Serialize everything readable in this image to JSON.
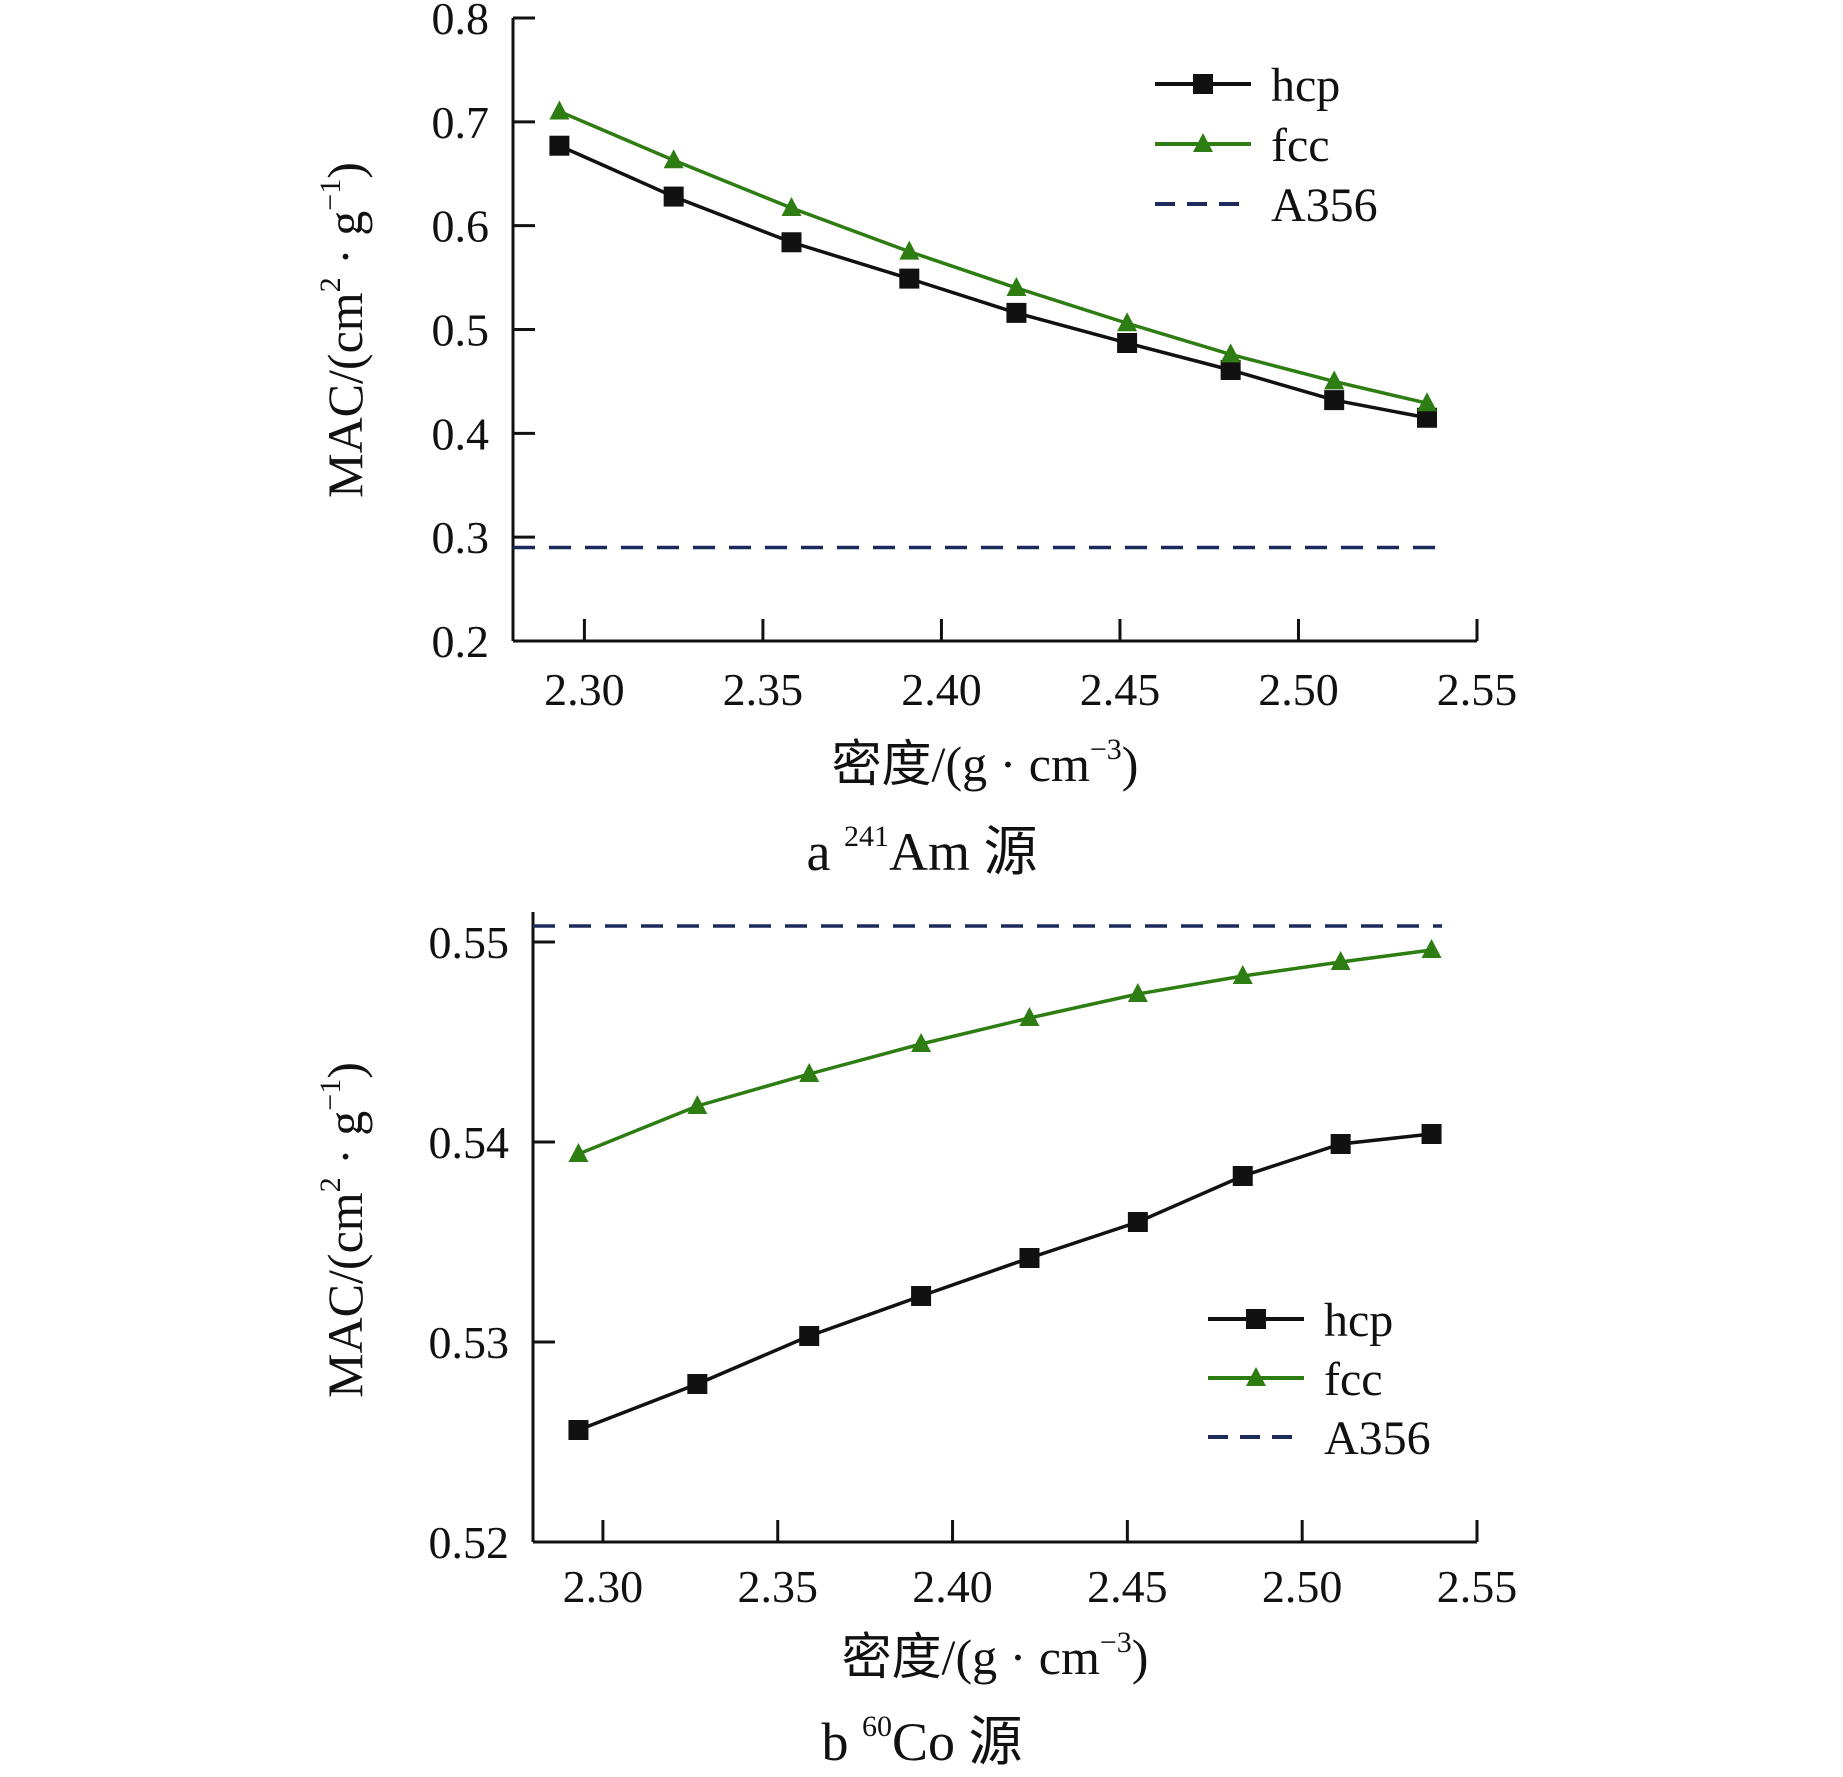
{
  "figure": {
    "colors": {
      "hcp": "#111111",
      "fcc": "#2e7d12",
      "A356": "#1c2a5c",
      "axis": "#111111"
    }
  },
  "chart_data": [
    {
      "type": "line",
      "panel": "a",
      "caption": {
        "letter": "a",
        "superscript": "241",
        "text": "Am 源"
      },
      "xlabel": {
        "main": "密度/(g · cm",
        "sup": "−3",
        "tail": ")"
      },
      "ylabel": {
        "main": "MAC/(cm",
        "sup1": "2",
        "mid": " · g",
        "sup2": "−1",
        "tail": ")"
      },
      "xlim": [
        2.28,
        2.55
      ],
      "ylim": [
        0.2,
        0.8
      ],
      "xticks": [
        2.3,
        2.35,
        2.4,
        2.45,
        2.5,
        2.55
      ],
      "xtick_labels": [
        "2.30",
        "2.35",
        "2.40",
        "2.45",
        "2.50",
        "2.55"
      ],
      "yticks": [
        0.2,
        0.3,
        0.4,
        0.5,
        0.6,
        0.7,
        0.8
      ],
      "ytick_labels": [
        "0.2",
        "0.3",
        "0.4",
        "0.5",
        "0.6",
        "0.7",
        "0.8"
      ],
      "legend_position": "top-right",
      "series": [
        {
          "name": "hcp",
          "marker": "square",
          "x": [
            2.293,
            2.325,
            2.358,
            2.391,
            2.421,
            2.452,
            2.481,
            2.51,
            2.536
          ],
          "values": [
            0.677,
            0.628,
            0.584,
            0.549,
            0.516,
            0.487,
            0.461,
            0.432,
            0.415
          ]
        },
        {
          "name": "fcc",
          "marker": "triangle",
          "x": [
            2.293,
            2.325,
            2.358,
            2.391,
            2.421,
            2.452,
            2.481,
            2.51,
            2.536
          ],
          "values": [
            0.71,
            0.663,
            0.617,
            0.575,
            0.54,
            0.506,
            0.476,
            0.45,
            0.429
          ]
        },
        {
          "name": "A356",
          "marker": "none",
          "dashed": true,
          "x": [
            2.28,
            2.54
          ],
          "values": [
            0.29,
            0.29
          ]
        }
      ]
    },
    {
      "type": "line",
      "panel": "b",
      "caption": {
        "letter": "b",
        "superscript": "60",
        "text": "Co 源"
      },
      "xlabel": {
        "main": "密度/(g · cm",
        "sup": "−3",
        "tail": ")"
      },
      "ylabel": {
        "main": "MAC/(cm",
        "sup1": "2",
        "mid": " · g",
        "sup2": "−1",
        "tail": ")"
      },
      "xlim": [
        2.28,
        2.55
      ],
      "ylim": [
        0.52,
        0.5515
      ],
      "xticks": [
        2.3,
        2.35,
        2.4,
        2.45,
        2.5,
        2.55
      ],
      "xtick_labels": [
        "2.30",
        "2.35",
        "2.40",
        "2.45",
        "2.50",
        "2.55"
      ],
      "yticks": [
        0.52,
        0.53,
        0.54,
        0.55
      ],
      "ytick_labels": [
        "0.52",
        "0.53",
        "0.54",
        "0.55"
      ],
      "legend_position": "bottom-right",
      "series": [
        {
          "name": "hcp",
          "marker": "square",
          "x": [
            2.293,
            2.327,
            2.359,
            2.391,
            2.422,
            2.453,
            2.483,
            2.511,
            2.537
          ],
          "values": [
            0.5256,
            0.5279,
            0.5303,
            0.5323,
            0.5342,
            0.536,
            0.5383,
            0.5399,
            0.5404
          ]
        },
        {
          "name": "fcc",
          "marker": "triangle",
          "x": [
            2.293,
            2.327,
            2.359,
            2.391,
            2.422,
            2.453,
            2.483,
            2.511,
            2.537
          ],
          "values": [
            0.5394,
            0.5418,
            0.5434,
            0.5449,
            0.5462,
            0.5474,
            0.5483,
            0.549,
            0.5496
          ]
        },
        {
          "name": "A356",
          "marker": "none",
          "dashed": true,
          "x": [
            2.28,
            2.54
          ],
          "values": [
            0.5508,
            0.5508
          ]
        }
      ]
    }
  ]
}
